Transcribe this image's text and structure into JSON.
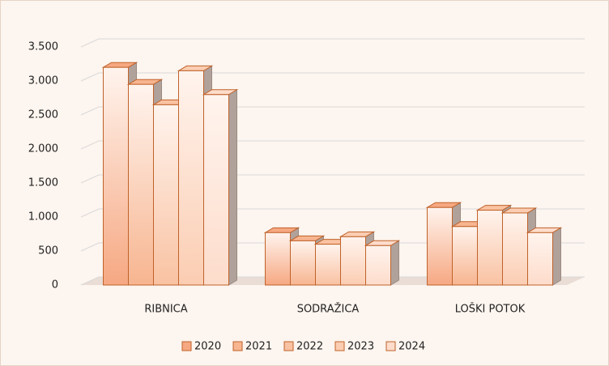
{
  "chart_data": {
    "type": "bar3d",
    "categories": [
      "RIBNICA",
      "SODRAŽICA",
      "LOŠKI POTOK"
    ],
    "series": [
      {
        "name": "2020",
        "color": "#f6a882",
        "values": [
          3200,
          770,
          1140
        ]
      },
      {
        "name": "2021",
        "color": "#f7b590",
        "values": [
          2950,
          650,
          860
        ]
      },
      {
        "name": "2022",
        "color": "#f9c2a2",
        "values": [
          2650,
          600,
          1100
        ]
      },
      {
        "name": "2023",
        "color": "#fbcdb2",
        "values": [
          3150,
          710,
          1060
        ]
      },
      {
        "name": "2024",
        "color": "#fddccb",
        "values": [
          2800,
          580,
          770
        ]
      }
    ],
    "ylim": [
      0,
      3500
    ],
    "yticks": [
      0,
      500,
      {
        "value": 1000,
        "label": "1.000"
      },
      {
        "value": 1500,
        "label": "1.500"
      },
      {
        "value": 2000,
        "label": "2.000"
      },
      {
        "value": 2500,
        "label": "2.500"
      },
      {
        "value": 3000,
        "label": "3.000"
      },
      {
        "value": 3500,
        "label": "3.500"
      }
    ],
    "grid": true,
    "legend": "bottom"
  }
}
